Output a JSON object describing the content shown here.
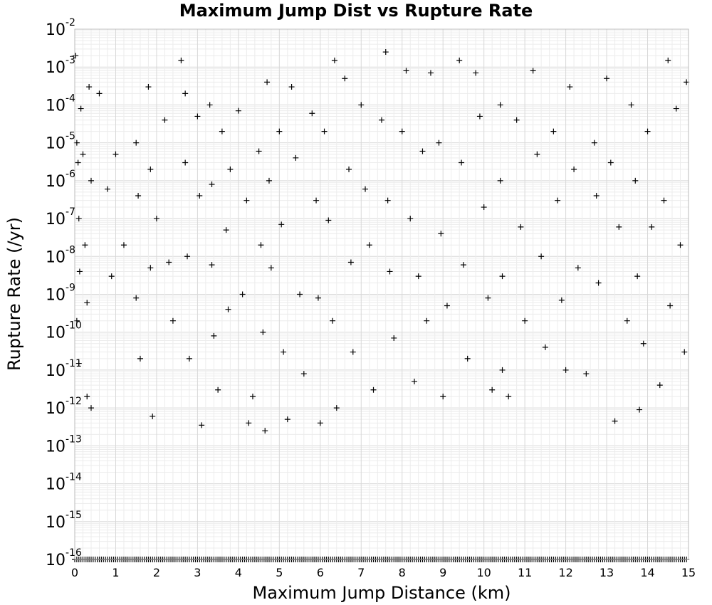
{
  "chart_data": {
    "type": "scatter",
    "title": "Maximum Jump Dist vs Rupture Rate",
    "xlabel": "Maximum Jump Distance (km)",
    "ylabel": "Rupture Rate (/yr)",
    "xlim": [
      0,
      15
    ],
    "ylim": [
      1e-16,
      0.01
    ],
    "y_scale": "log",
    "grid": true,
    "marker": "+",
    "marker_color": "#000000",
    "x_ticks": [
      "0",
      "1",
      "2",
      "3",
      "4",
      "5",
      "6",
      "7",
      "8",
      "9",
      "10",
      "11",
      "12",
      "13",
      "14",
      "15"
    ],
    "y_ticks": [
      {
        "base": "10",
        "exp": "-2"
      },
      {
        "base": "10",
        "exp": "-3"
      },
      {
        "base": "10",
        "exp": "-4"
      },
      {
        "base": "10",
        "exp": "-5"
      },
      {
        "base": "10",
        "exp": "-6"
      },
      {
        "base": "10",
        "exp": "-7"
      },
      {
        "base": "10",
        "exp": "-8"
      },
      {
        "base": "10",
        "exp": "-9"
      },
      {
        "base": "10",
        "exp": "-10"
      },
      {
        "base": "10",
        "exp": "-11"
      },
      {
        "base": "10",
        "exp": "-12"
      },
      {
        "base": "10",
        "exp": "-13"
      },
      {
        "base": "10",
        "exp": "-14"
      },
      {
        "base": "10",
        "exp": "-15"
      },
      {
        "base": "10",
        "exp": "-16"
      }
    ],
    "series": [
      {
        "points": [
          [
            0.05,
            1e-05
          ],
          [
            0.08,
            3e-06
          ],
          [
            0.1,
            1e-07
          ],
          [
            0.12,
            4e-09
          ],
          [
            0.05,
            2e-10
          ],
          [
            0.15,
            8e-05
          ],
          [
            0.2,
            5e-06
          ],
          [
            0.25,
            2e-08
          ],
          [
            0.3,
            6e-10
          ],
          [
            0.35,
            0.0003
          ],
          [
            0.4,
            1e-06
          ],
          [
            0.02,
            0.002
          ],
          [
            0.1,
            1.5e-11
          ],
          [
            0.3,
            2e-12
          ],
          [
            0.4,
            1e-12
          ],
          [
            0.6,
            0.0002
          ],
          [
            0.8,
            6e-07
          ],
          [
            0.9,
            3e-09
          ],
          [
            1.0,
            5e-06
          ],
          [
            1.2,
            2e-08
          ],
          [
            1.5,
            1e-05
          ],
          [
            1.55,
            4e-07
          ],
          [
            1.5,
            8e-10
          ],
          [
            1.6,
            2e-11
          ],
          [
            1.8,
            0.0003
          ],
          [
            1.85,
            2e-06
          ],
          [
            1.85,
            5e-09
          ],
          [
            1.9,
            6e-13
          ],
          [
            2.0,
            1e-07
          ],
          [
            2.2,
            4e-05
          ],
          [
            2.3,
            7e-09
          ],
          [
            2.4,
            2e-10
          ],
          [
            2.6,
            0.0015
          ],
          [
            2.7,
            0.0002
          ],
          [
            2.7,
            3e-06
          ],
          [
            2.75,
            1e-08
          ],
          [
            2.8,
            2e-11
          ],
          [
            3.0,
            5e-05
          ],
          [
            3.05,
            4e-07
          ],
          [
            3.1,
            3.5e-13
          ],
          [
            3.3,
            0.0001
          ],
          [
            3.35,
            8e-07
          ],
          [
            3.35,
            6e-09
          ],
          [
            3.4,
            8e-11
          ],
          [
            3.5,
            3e-12
          ],
          [
            3.6,
            2e-05
          ],
          [
            3.7,
            5e-08
          ],
          [
            3.75,
            4e-10
          ],
          [
            3.8,
            2e-06
          ],
          [
            4.0,
            7e-05
          ],
          [
            4.1,
            1e-09
          ],
          [
            4.2,
            3e-07
          ],
          [
            4.25,
            4e-13
          ],
          [
            4.35,
            2e-12
          ],
          [
            4.5,
            6e-06
          ],
          [
            4.55,
            2e-08
          ],
          [
            4.6,
            1e-10
          ],
          [
            4.65,
            2.5e-13
          ],
          [
            4.7,
            0.0004
          ],
          [
            4.75,
            1e-06
          ],
          [
            4.8,
            5e-09
          ],
          [
            5.0,
            2e-05
          ],
          [
            5.05,
            7e-08
          ],
          [
            5.1,
            3e-11
          ],
          [
            5.2,
            5e-13
          ],
          [
            5.3,
            0.0003
          ],
          [
            5.4,
            4e-06
          ],
          [
            5.5,
            1e-09
          ],
          [
            5.6,
            8e-12
          ],
          [
            5.8,
            6e-05
          ],
          [
            5.9,
            3e-07
          ],
          [
            5.95,
            8e-10
          ],
          [
            6.0,
            4e-13
          ],
          [
            6.1,
            2e-05
          ],
          [
            6.2,
            9e-08
          ],
          [
            6.3,
            2e-10
          ],
          [
            6.35,
            0.0015
          ],
          [
            6.4,
            1e-12
          ],
          [
            6.6,
            0.0005
          ],
          [
            6.7,
            2e-06
          ],
          [
            6.75,
            7e-09
          ],
          [
            6.8,
            3e-11
          ],
          [
            7.0,
            0.0001
          ],
          [
            7.1,
            6e-07
          ],
          [
            7.2,
            2e-08
          ],
          [
            7.3,
            3e-12
          ],
          [
            7.5,
            4e-05
          ],
          [
            7.6,
            0.0025
          ],
          [
            7.65,
            3e-07
          ],
          [
            7.7,
            4e-09
          ],
          [
            7.8,
            7e-11
          ],
          [
            8.0,
            2e-05
          ],
          [
            8.1,
            0.0008
          ],
          [
            8.2,
            1e-07
          ],
          [
            8.3,
            5e-12
          ],
          [
            8.4,
            3e-09
          ],
          [
            8.5,
            6e-06
          ],
          [
            8.6,
            2e-10
          ],
          [
            8.7,
            0.0007
          ],
          [
            8.9,
            1e-05
          ],
          [
            8.95,
            4e-08
          ],
          [
            9.0,
            2e-12
          ],
          [
            9.1,
            5e-10
          ],
          [
            9.4,
            0.0015
          ],
          [
            9.45,
            3e-06
          ],
          [
            9.5,
            6e-09
          ],
          [
            9.6,
            2e-11
          ],
          [
            9.8,
            0.0007
          ],
          [
            9.9,
            5e-05
          ],
          [
            10.0,
            2e-07
          ],
          [
            10.1,
            8e-10
          ],
          [
            10.2,
            3e-12
          ],
          [
            10.4,
            0.0001
          ],
          [
            10.4,
            1e-06
          ],
          [
            10.45,
            3e-09
          ],
          [
            10.45,
            1e-11
          ],
          [
            10.6,
            2e-12
          ],
          [
            10.8,
            4e-05
          ],
          [
            10.9,
            6e-08
          ],
          [
            11.0,
            2e-10
          ],
          [
            11.2,
            0.0008
          ],
          [
            11.3,
            5e-06
          ],
          [
            11.4,
            1e-08
          ],
          [
            11.5,
            4e-11
          ],
          [
            11.7,
            2e-05
          ],
          [
            11.8,
            3e-07
          ],
          [
            11.9,
            7e-10
          ],
          [
            12.0,
            1e-11
          ],
          [
            12.1,
            0.0003
          ],
          [
            12.2,
            2e-06
          ],
          [
            12.3,
            5e-09
          ],
          [
            12.5,
            8e-12
          ],
          [
            12.7,
            1e-05
          ],
          [
            12.75,
            4e-07
          ],
          [
            12.8,
            2e-09
          ],
          [
            13.0,
            0.0005
          ],
          [
            13.1,
            3e-06
          ],
          [
            13.2,
            4.5e-13
          ],
          [
            13.3,
            6e-08
          ],
          [
            13.5,
            2e-10
          ],
          [
            13.6,
            0.0001
          ],
          [
            13.7,
            1e-06
          ],
          [
            13.75,
            3e-09
          ],
          [
            13.8,
            9e-13
          ],
          [
            13.9,
            5e-11
          ],
          [
            14.0,
            2e-05
          ],
          [
            14.1,
            6e-08
          ],
          [
            14.3,
            4e-12
          ],
          [
            14.4,
            3e-07
          ],
          [
            14.5,
            0.0015
          ],
          [
            14.55,
            5e-10
          ],
          [
            14.7,
            8e-05
          ],
          [
            14.8,
            2e-08
          ],
          [
            14.9,
            3e-11
          ],
          [
            14.95,
            0.0004
          ]
        ]
      }
    ]
  }
}
